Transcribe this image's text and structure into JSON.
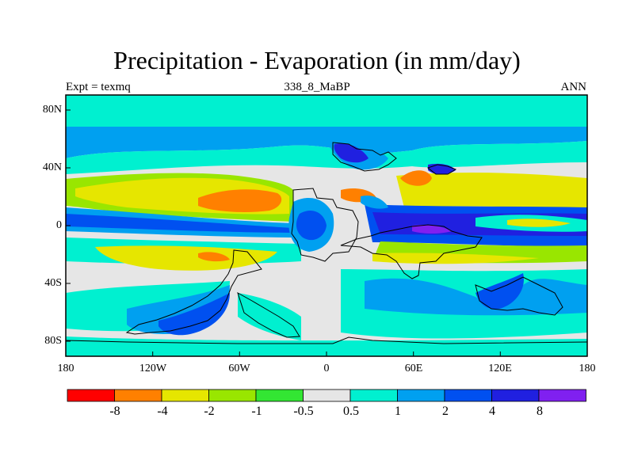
{
  "title": "Precipitation - Evaporation (in mm/day)",
  "subtitle_left": "Expt = texmq",
  "subtitle_center": "338_8_MaBP",
  "subtitle_right": "ANN",
  "x_ticks": [
    "180",
    "120W",
    "60W",
    "0",
    "60E",
    "120E",
    "180"
  ],
  "y_ticks": [
    "80N",
    "40N",
    "0",
    "40S",
    "80S"
  ],
  "colorbar": {
    "labels": [
      "-8",
      "-4",
      "-2",
      "-1",
      "-0.5",
      "0.5",
      "1",
      "2",
      "4",
      "8"
    ],
    "colors": [
      "#ff0000",
      "#ff8000",
      "#e6e600",
      "#99e600",
      "#33e633",
      "#e6e6e6",
      "#00f0d0",
      "#00a0f0",
      "#0050f0",
      "#2020e0",
      "#8020f0"
    ]
  },
  "colors": {
    "background_field": "#e6e6e6",
    "coastline": "#000000"
  }
}
